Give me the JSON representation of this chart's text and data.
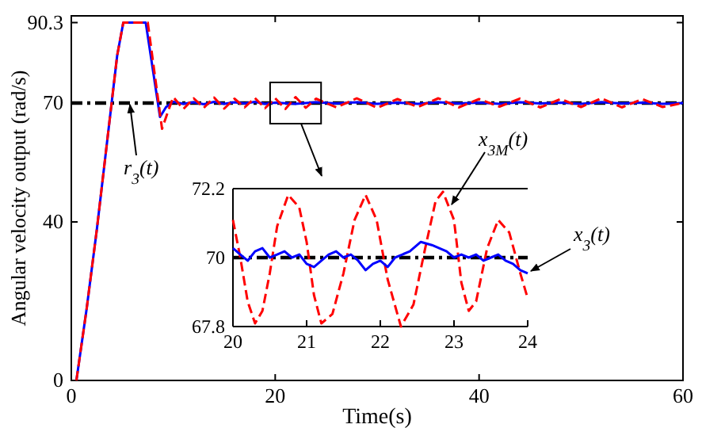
{
  "chart_data": [
    {
      "type": "line",
      "xlabel": "Time(s)",
      "ylabel": "Angular velocity output (rad/s)",
      "xlim": [
        0,
        60
      ],
      "ylim": [
        0,
        92
      ],
      "xticks": [
        0,
        20,
        40,
        60
      ],
      "yticks": [
        0,
        40,
        70,
        90.3
      ],
      "grid": false,
      "series": [
        {
          "name": "r$_{3}$(t)",
          "color": "#000000",
          "line_style": "dashdot",
          "x": [
            0,
            60
          ],
          "values": [
            70,
            70
          ]
        },
        {
          "color": "#0000ff",
          "line_style": "solid",
          "x": [
            0.5,
            1.5,
            2.5,
            3.5,
            4.5,
            5.1,
            7.3,
            8.2,
            8.7,
            9.3,
            10,
            11,
            12,
            13,
            14,
            15,
            16,
            17,
            18,
            19,
            20,
            22,
            24,
            26,
            28,
            30,
            32,
            34,
            36,
            38,
            40,
            42,
            44,
            46,
            48,
            50,
            52,
            54,
            56,
            58,
            60
          ],
          "values": [
            0,
            18,
            38,
            60,
            82,
            90.3,
            90.3,
            75,
            66.5,
            69,
            70.3,
            69.8,
            70.2,
            69.7,
            70.3,
            69.8,
            70.2,
            69.9,
            70.3,
            69.8,
            70.1,
            69.8,
            70.2,
            69.9,
            70.2,
            69.8,
            70.1,
            69.8,
            70.2,
            69.9,
            70.1,
            69.8,
            70.2,
            69.9,
            70.1,
            69.8,
            70.2,
            69.9,
            70.1,
            69.8,
            70
          ]
        },
        {
          "color": "#ff0000",
          "line_style": "dashed",
          "x": [
            0.5,
            1.5,
            2.5,
            3.5,
            4.5,
            5.1,
            7.5,
            8.3,
            8.9,
            9.5,
            10,
            11,
            12,
            13,
            14,
            15,
            16,
            17,
            18,
            19,
            20,
            21,
            22,
            23,
            24,
            26,
            28,
            30,
            32,
            34,
            36,
            38,
            40,
            42,
            44,
            46,
            48,
            50,
            52,
            54,
            56,
            58,
            60
          ],
          "values": [
            0,
            18,
            38,
            60,
            82,
            90.3,
            90.3,
            75,
            63.5,
            68,
            71.5,
            68.5,
            71.2,
            68.8,
            71.4,
            68.6,
            71.1,
            68.9,
            71.3,
            68.7,
            71.2,
            68.5,
            71.5,
            68.8,
            71.1,
            68.9,
            71.2,
            68.8,
            71,
            69,
            71.2,
            68.9,
            71,
            69.1,
            71.1,
            68.9,
            71,
            69,
            71.2,
            68.9,
            71,
            69,
            70
          ]
        }
      ]
    },
    {
      "type": "line",
      "xlim": [
        20,
        24
      ],
      "ylim": [
        67.8,
        72.2
      ],
      "xticks": [
        20,
        21,
        22,
        23,
        24
      ],
      "yticks": [
        67.8,
        70,
        72.2
      ],
      "grid": false,
      "ref_lines": [
        {
          "axis": "y",
          "value": 72.2,
          "color": "#000000"
        }
      ],
      "series": [
        {
          "color": "#000000",
          "line_style": "dashdot",
          "x": [
            20,
            24
          ],
          "values": [
            70,
            70
          ]
        },
        {
          "name": "x$_{3M}$(t)",
          "color": "#ff0000",
          "line_style": "dashed",
          "x": [
            20,
            20.1,
            20.2,
            20.3,
            20.4,
            20.5,
            20.6,
            20.75,
            20.9,
            21,
            21.1,
            21.2,
            21.35,
            21.5,
            21.65,
            21.8,
            21.95,
            22.1,
            22.28,
            22.45,
            22.6,
            22.75,
            22.85,
            23,
            23.1,
            23.2,
            23.3,
            23.45,
            23.6,
            23.75,
            23.9,
            24
          ],
          "values": [
            71.2,
            70,
            68.6,
            67.9,
            68.3,
            69.5,
            71,
            72,
            71.6,
            70.5,
            68.8,
            67.9,
            68.2,
            69.5,
            71.2,
            72,
            71.2,
            69.3,
            67.8,
            68.5,
            70.2,
            71.8,
            72.1,
            71.2,
            69.2,
            68.3,
            68.6,
            70.3,
            71.2,
            70.8,
            69.5,
            68.7
          ]
        },
        {
          "name": "x$_{3}$(t)",
          "color": "#0000ff",
          "line_style": "solid",
          "x": [
            20,
            20.1,
            20.2,
            20.3,
            20.4,
            20.5,
            20.6,
            20.7,
            20.8,
            20.9,
            21,
            21.1,
            21.2,
            21.3,
            21.4,
            21.5,
            21.6,
            21.7,
            21.8,
            21.9,
            22,
            22.1,
            22.2,
            22.3,
            22.4,
            22.55,
            22.7,
            22.8,
            22.9,
            23,
            23.1,
            23.2,
            23.3,
            23.4,
            23.5,
            23.6,
            23.7,
            23.8,
            23.9,
            24
          ],
          "values": [
            70.3,
            70.1,
            69.9,
            70.2,
            70.3,
            70,
            70.1,
            70.2,
            70,
            70.1,
            69.8,
            69.7,
            69.9,
            70.1,
            70.2,
            70,
            70.1,
            69.9,
            69.6,
            69.8,
            69.9,
            69.7,
            70,
            70.1,
            70.2,
            70.5,
            70.4,
            70.3,
            70.2,
            70,
            70.1,
            70,
            70.1,
            69.9,
            70,
            70.1,
            69.9,
            69.8,
            69.6,
            69.5
          ]
        }
      ]
    }
  ]
}
